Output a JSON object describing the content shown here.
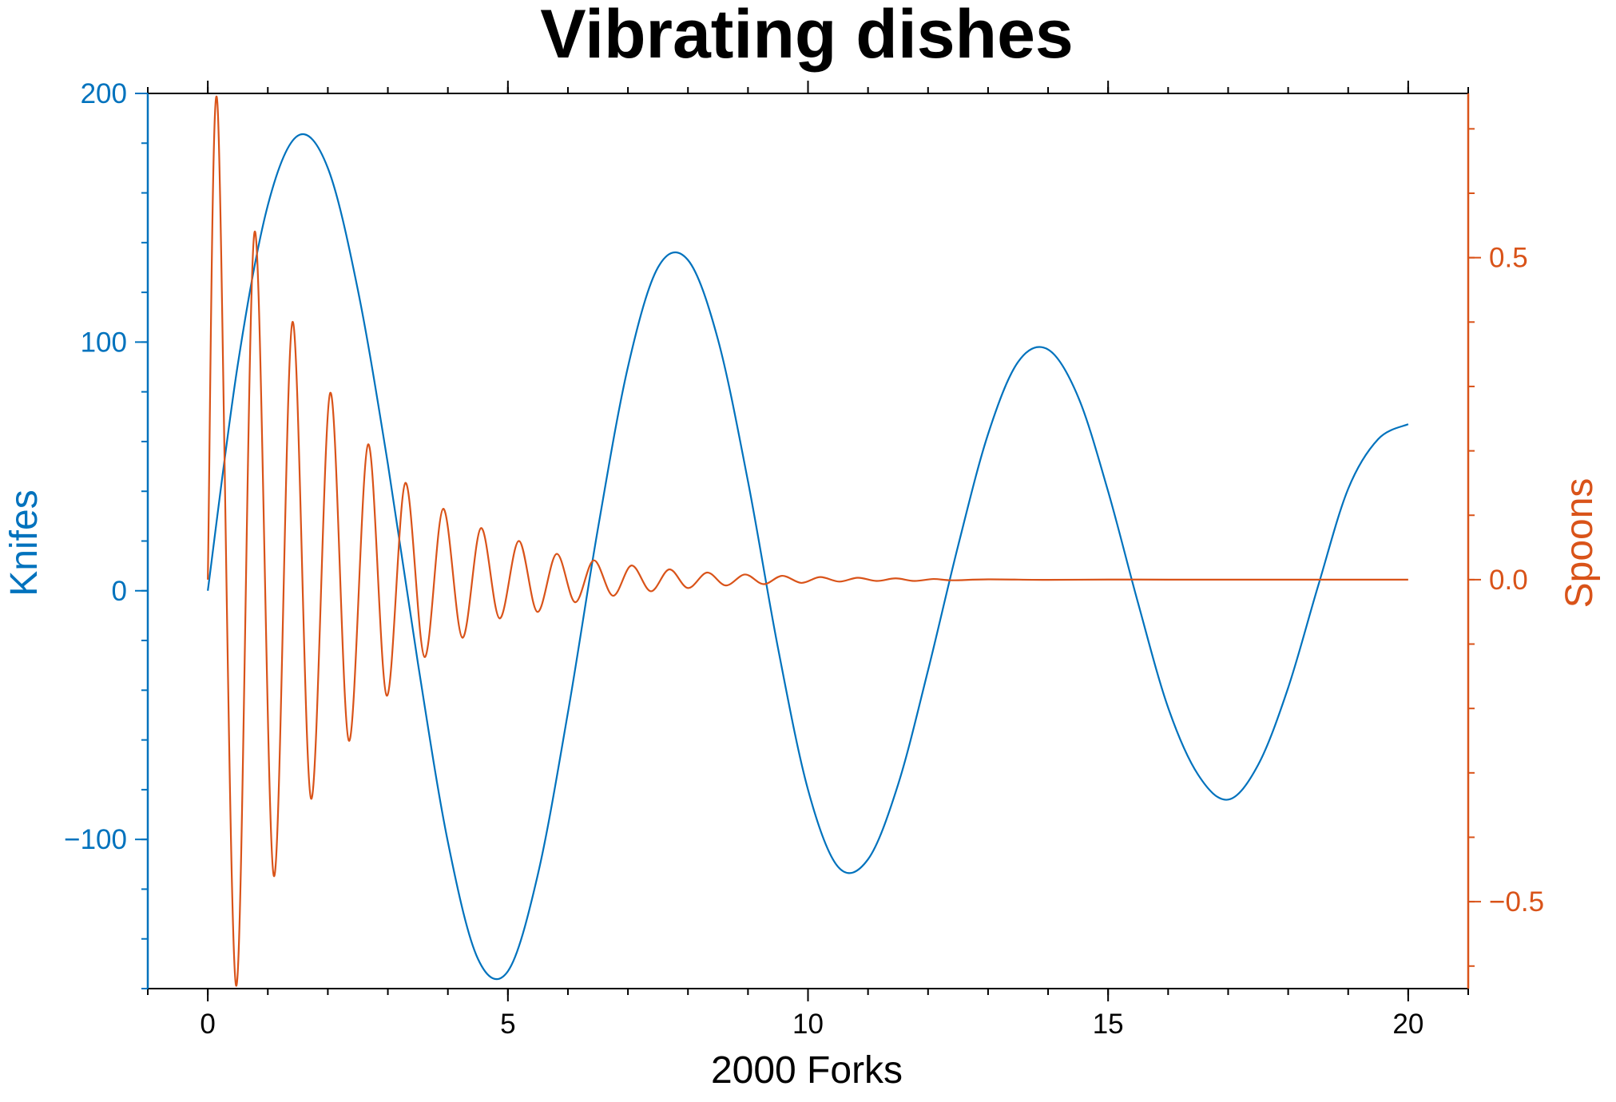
{
  "chart_data": {
    "type": "line",
    "title": "Vibrating dishes",
    "xlabel": "2000 Forks",
    "ylabel_left": "Knifes",
    "ylabel_right": "Spoons",
    "xlim": [
      -1,
      21
    ],
    "ylim_left": [
      -160,
      200
    ],
    "ylim_right": [
      -0.635,
      0.755
    ],
    "x_ticks": [
      0,
      5,
      10,
      15,
      20
    ],
    "x_tick_labels": [
      "0",
      "5",
      "10",
      "15",
      "20"
    ],
    "y_left_ticks": [
      -100,
      0,
      100,
      200
    ],
    "y_left_tick_labels": [
      "−100",
      "0",
      "100",
      "200"
    ],
    "y_right_ticks": [
      -0.5,
      0.0,
      0.5
    ],
    "y_right_tick_labels": [
      "−0.5",
      "0.0",
      "0.5"
    ],
    "grid": false,
    "legend": "none",
    "colors": {
      "left": "#0072BD",
      "right": "#D95319",
      "axis": "#000000"
    },
    "series": [
      {
        "axis": "left",
        "x": [
          0,
          0.5,
          1,
          1.5,
          2,
          2.5,
          3,
          3.5,
          4,
          4.5,
          5,
          5.5,
          6,
          6.5,
          7,
          7.5,
          8,
          8.5,
          9,
          9.5,
          10,
          10.5,
          11,
          11.5,
          12,
          12.5,
          13,
          13.5,
          14,
          14.5,
          15,
          15.5,
          16,
          16.5,
          17,
          17.5,
          18,
          18.5,
          19,
          19.5,
          20
        ],
        "y": [
          0,
          91,
          155,
          183,
          170,
          121,
          51,
          -29,
          -101,
          -148,
          -153,
          -114,
          -49,
          25,
          90,
          130,
          133,
          101,
          44,
          -23,
          -80,
          -111,
          -108,
          -78,
          -32,
          18,
          63,
          92,
          97,
          78,
          40,
          -5,
          -47,
          -74,
          -84,
          -70,
          -39,
          2,
          41,
          61,
          67
        ]
      },
      {
        "axis": "right",
        "x": [
          0,
          0.16,
          0.47,
          0.78,
          1.1,
          1.41,
          1.72,
          2.04,
          2.35,
          2.67,
          2.98,
          3.29,
          3.61,
          3.92,
          4.24,
          4.55,
          4.86,
          5.18,
          5.49,
          5.81,
          6.12,
          6.43,
          6.75,
          7.06,
          7.38,
          7.69,
          8.0,
          8.32,
          8.63,
          8.95,
          9.26,
          9.57,
          9.89,
          10.2,
          10.52,
          10.83,
          11.14,
          11.46,
          11.77,
          12.09,
          12.4,
          13,
          14,
          15,
          16,
          17,
          18,
          19,
          20
        ],
        "y": [
          0,
          0.74,
          -0.63,
          0.54,
          -0.46,
          0.4,
          -0.34,
          0.29,
          -0.25,
          0.21,
          -0.18,
          0.15,
          -0.12,
          0.11,
          -0.09,
          0.08,
          -0.06,
          0.06,
          -0.05,
          0.04,
          -0.035,
          0.03,
          -0.025,
          0.022,
          -0.018,
          0.016,
          -0.013,
          0.011,
          -0.009,
          0.008,
          -0.007,
          0.006,
          -0.005,
          0.004,
          -0.003,
          0.003,
          -0.002,
          0.002,
          -0.002,
          0.001,
          -0.001,
          0.0005,
          -0.0003,
          0.0002,
          0,
          0,
          0,
          0,
          0
        ]
      }
    ]
  }
}
